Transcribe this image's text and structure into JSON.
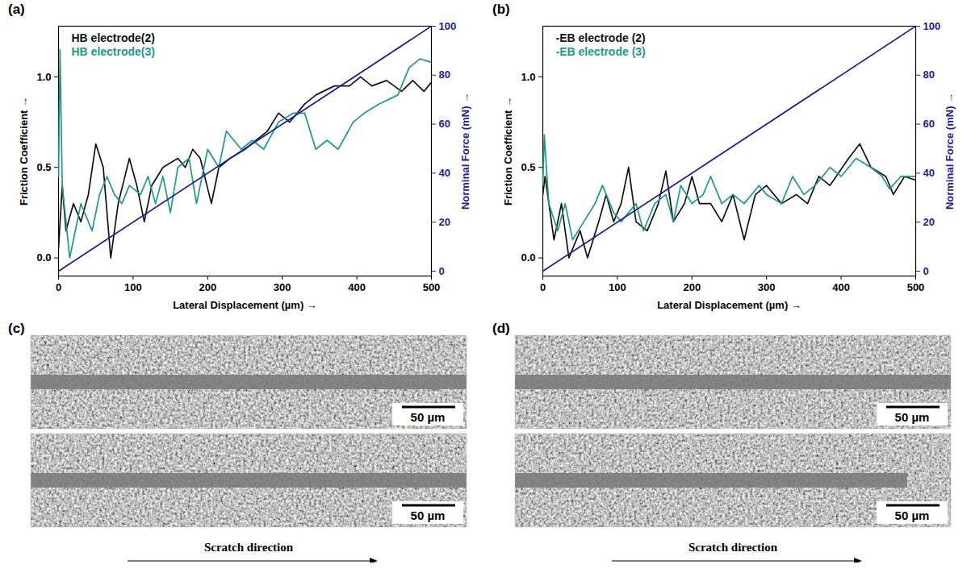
{
  "chart_data": [
    {
      "type": "line",
      "label": "(a)",
      "x_label": "Lateral Displacement (µm)",
      "y_label": "Friction Coefficient",
      "y2_label": "Norminal Force (mN)",
      "xlim": [
        0,
        500
      ],
      "xticks": [
        0,
        100,
        200,
        300,
        400,
        500
      ],
      "ylim": [
        -0.1,
        1.28
      ],
      "yticks": [
        {
          "value": 0,
          "label": "0.0"
        },
        {
          "value": 0.5,
          "label": "0.5"
        },
        {
          "value": 1,
          "label": "1.0"
        }
      ],
      "y2lim": [
        -2,
        100
      ],
      "y2ticks": [
        0,
        20,
        40,
        60,
        80,
        100
      ],
      "legend": "top-left",
      "series": [
        {
          "name": "HB electrode(2)",
          "color": "#111111",
          "x": [
            0,
            5,
            10,
            20,
            30,
            40,
            50,
            60,
            70,
            80,
            95,
            105,
            115,
            125,
            140,
            160,
            170,
            180,
            190,
            205,
            215,
            230,
            250,
            265,
            280,
            295,
            310,
            330,
            345,
            370,
            390,
            405,
            420,
            440,
            460,
            475,
            490,
            500
          ],
          "values": [
            0.05,
            0.4,
            0.15,
            0.3,
            0.2,
            0.35,
            0.63,
            0.5,
            0.0,
            0.3,
            0.55,
            0.4,
            0.2,
            0.4,
            0.5,
            0.55,
            0.5,
            0.6,
            0.55,
            0.3,
            0.5,
            0.55,
            0.6,
            0.65,
            0.7,
            0.8,
            0.75,
            0.85,
            0.9,
            0.95,
            0.95,
            1.0,
            0.95,
            0.98,
            0.92,
            0.98,
            0.92,
            0.97
          ]
        },
        {
          "name": "HB electrode(3)",
          "color": "#1b9a8c",
          "x": [
            0,
            2,
            5,
            15,
            30,
            45,
            55,
            65,
            75,
            85,
            95,
            110,
            120,
            130,
            140,
            150,
            160,
            175,
            185,
            200,
            215,
            225,
            245,
            260,
            275,
            295,
            315,
            330,
            345,
            360,
            375,
            395,
            410,
            430,
            455,
            470,
            485,
            500
          ],
          "values": [
            0.45,
            1.15,
            0.4,
            0.0,
            0.3,
            0.15,
            0.35,
            0.45,
            0.35,
            0.3,
            0.4,
            0.35,
            0.45,
            0.3,
            0.45,
            0.25,
            0.5,
            0.55,
            0.3,
            0.6,
            0.5,
            0.7,
            0.6,
            0.65,
            0.6,
            0.75,
            0.8,
            0.8,
            0.6,
            0.65,
            0.6,
            0.75,
            0.8,
            0.85,
            0.9,
            1.05,
            1.1,
            1.08
          ]
        },
        {
          "name": "Norminal Force",
          "color": "#1c1c9c",
          "axis": "y2",
          "x": [
            0,
            500
          ],
          "values": [
            0,
            100
          ]
        }
      ]
    },
    {
      "type": "line",
      "label": "(b)",
      "x_label": "Lateral Displacement (µm)",
      "y_label": "Friction Coefficient",
      "y2_label": "Norminal Force (mN)",
      "xlim": [
        0,
        500
      ],
      "xticks": [
        0,
        100,
        200,
        300,
        400,
        500
      ],
      "ylim": [
        -0.1,
        1.28
      ],
      "yticks": [
        {
          "value": 0,
          "label": "0.0"
        },
        {
          "value": 0.5,
          "label": "0.5"
        },
        {
          "value": 1,
          "label": "1.0"
        }
      ],
      "y2lim": [
        -2,
        100
      ],
      "y2ticks": [
        0,
        20,
        40,
        60,
        80,
        100
      ],
      "legend": "top-left",
      "series": [
        {
          "name": "-EB electrode (2)",
          "color": "#111111",
          "x": [
            0,
            3,
            15,
            25,
            35,
            50,
            60,
            75,
            85,
            95,
            105,
            115,
            125,
            140,
            155,
            165,
            175,
            190,
            200,
            210,
            225,
            240,
            255,
            270,
            285,
            300,
            320,
            340,
            355,
            370,
            385,
            410,
            425,
            440,
            460,
            470,
            485,
            500
          ],
          "values": [
            0.35,
            0.45,
            0.1,
            0.3,
            0.0,
            0.15,
            0.0,
            0.2,
            0.35,
            0.2,
            0.3,
            0.5,
            0.2,
            0.15,
            0.3,
            0.48,
            0.2,
            0.3,
            0.45,
            0.3,
            0.3,
            0.2,
            0.35,
            0.1,
            0.35,
            0.4,
            0.3,
            0.35,
            0.3,
            0.45,
            0.4,
            0.55,
            0.63,
            0.5,
            0.45,
            0.35,
            0.45,
            0.43
          ]
        },
        {
          "name": "-EB electrode (3)",
          "color": "#1b9a8c",
          "x": [
            0,
            2,
            8,
            20,
            30,
            40,
            55,
            70,
            80,
            95,
            105,
            115,
            125,
            135,
            150,
            165,
            175,
            185,
            200,
            215,
            225,
            240,
            255,
            270,
            290,
            300,
            320,
            335,
            350,
            365,
            385,
            400,
            420,
            440,
            455,
            465,
            480,
            500
          ],
          "values": [
            0.4,
            0.68,
            0.3,
            0.15,
            0.3,
            0.1,
            0.2,
            0.3,
            0.4,
            0.25,
            0.2,
            0.25,
            0.3,
            0.15,
            0.3,
            0.35,
            0.2,
            0.4,
            0.3,
            0.35,
            0.45,
            0.3,
            0.35,
            0.3,
            0.4,
            0.35,
            0.3,
            0.45,
            0.35,
            0.4,
            0.5,
            0.45,
            0.55,
            0.5,
            0.45,
            0.38,
            0.45,
            0.45
          ]
        },
        {
          "name": "Norminal Force",
          "color": "#1c1c9c",
          "axis": "y2",
          "x": [
            0,
            500
          ],
          "values": [
            0,
            100
          ]
        }
      ]
    }
  ],
  "image_panels": [
    {
      "label": "(c)",
      "images": [
        {
          "scale_bar": "50 µm"
        },
        {
          "scale_bar": "50 µm"
        }
      ],
      "caption": "Scratch direction"
    },
    {
      "label": "(d)",
      "images": [
        {
          "scale_bar": "50 µm"
        },
        {
          "scale_bar": "50 µm"
        }
      ],
      "caption": "Scratch direction"
    }
  ]
}
